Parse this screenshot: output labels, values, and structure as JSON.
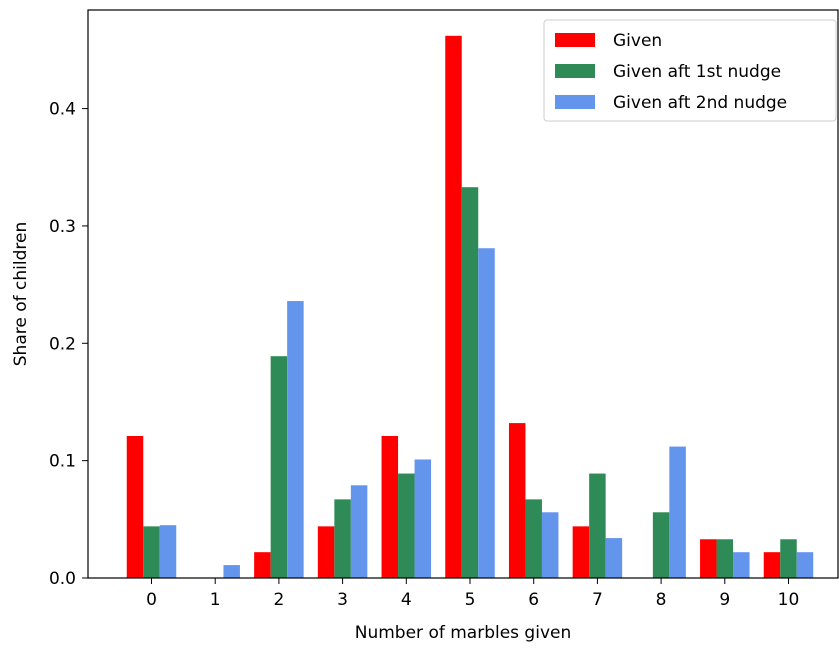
{
  "chart_data": {
    "type": "bar",
    "title": "",
    "xlabel": "Number of marbles given",
    "ylabel": "Share of children",
    "categories": [
      "0",
      "1",
      "2",
      "3",
      "4",
      "5",
      "6",
      "7",
      "8",
      "9",
      "10"
    ],
    "ylim": [
      0,
      0.484
    ],
    "yticks": [
      0.0,
      0.1,
      0.2,
      0.3,
      0.4
    ],
    "ytick_labels": [
      "0.0",
      "0.1",
      "0.2",
      "0.3",
      "0.4"
    ],
    "grid": false,
    "legend_position": "top-right",
    "series": [
      {
        "name": "Given",
        "color": "#ff0000",
        "values": [
          0.121,
          0.0,
          0.022,
          0.044,
          0.121,
          0.462,
          0.132,
          0.044,
          0.0,
          0.033,
          0.022
        ]
      },
      {
        "name": "Given aft 1st nudge",
        "color": "#2e8b57",
        "values": [
          0.044,
          0.0,
          0.189,
          0.067,
          0.089,
          0.333,
          0.067,
          0.089,
          0.056,
          0.033,
          0.033
        ]
      },
      {
        "name": "Given aft 2nd nudge",
        "color": "#6495ed",
        "values": [
          0.045,
          0.011,
          0.236,
          0.079,
          0.101,
          0.281,
          0.056,
          0.034,
          0.112,
          0.022,
          0.022
        ]
      }
    ]
  }
}
